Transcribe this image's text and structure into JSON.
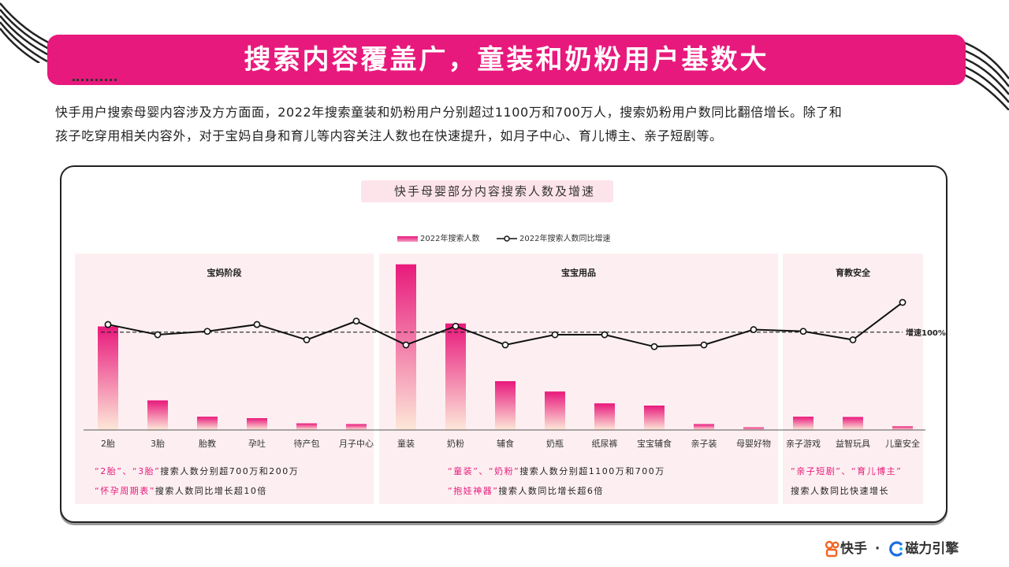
{
  "header": {
    "title": "搜索内容覆盖广，童装和奶粉用户基数大"
  },
  "intro": {
    "line1": "快手用户搜索母婴内容涉及方方面面，2022年搜索童装和奶粉用户分别超过1100万和700万人，搜索奶粉用户数同比翻倍增长。除了和",
    "line2": "孩子吃穿用相关内容外，对于宝妈自身和育儿等内容关注人数也在快速提升，如月子中心、育儿博主、亲子短剧等。"
  },
  "chart_data": {
    "type": "bar",
    "title": "快手母婴部分内容搜索人数及增速",
    "legend": [
      "2022年搜索人数",
      "2022年搜索人数同比增速"
    ],
    "legend_position": "top-center",
    "categories": [
      "2胎",
      "3胎",
      "胎教",
      "孕吐",
      "待产包",
      "月子中心",
      "童装",
      "奶粉",
      "辅食",
      "奶瓶",
      "纸尿裤",
      "宝宝辅食",
      "亲子装",
      "母婴好物",
      "亲子游戏",
      "益智玩具",
      "儿童安全"
    ],
    "series": [
      {
        "name": "2022年搜索人数",
        "kind": "bar",
        "values": [
          700,
          200,
          90,
          80,
          45,
          40,
          1120,
          720,
          330,
          260,
          180,
          165,
          40,
          18,
          90,
          88,
          25
        ]
      },
      {
        "name": "2022年搜索人数同比增速",
        "kind": "line",
        "values": [
          0.62,
          0.56,
          0.58,
          0.62,
          0.53,
          0.64,
          0.5,
          0.61,
          0.5,
          0.56,
          0.56,
          0.49,
          0.5,
          0.59,
          0.58,
          0.53,
          0.75
        ]
      }
    ],
    "reference_line": {
      "label": "增速100%",
      "value": 0.575
    },
    "groups": [
      {
        "title": "宝妈阶段",
        "start": 0,
        "end": 5
      },
      {
        "title": "宝宝用品",
        "start": 6,
        "end": 13
      },
      {
        "title": "育教安全",
        "start": 14,
        "end": 16
      }
    ],
    "ylim_bar": [
      0,
      1150
    ],
    "ylim_line": [
      0,
      1
    ],
    "grid": false
  },
  "notes": {
    "mom": [
      [
        {
          "t": "“2胎”、“3胎”",
          "hl": true
        },
        {
          "t": "搜索人数分别超700万和200万",
          "hl": false
        }
      ],
      [
        {
          "t": "“怀孕周期表”",
          "hl": true
        },
        {
          "t": "搜索人数同比增长超10倍",
          "hl": false
        }
      ]
    ],
    "baby": [
      [
        {
          "t": "“童装”、“奶粉”",
          "hl": true
        },
        {
          "t": "搜索人数分别超1100万和700万",
          "hl": false
        }
      ],
      [
        {
          "t": "“抱娃神器”",
          "hl": true
        },
        {
          "t": "搜索人数同比增长超6倍",
          "hl": false
        }
      ]
    ],
    "edu": [
      [
        {
          "t": "“亲子短剧”、“育儿博主”",
          "hl": true
        }
      ],
      [
        {
          "t": "搜索人数同比快速增长",
          "hl": false
        }
      ]
    ]
  },
  "footer": {
    "brand1": "快手",
    "sep": "·",
    "brand2": "磁力引擎"
  },
  "colors": {
    "accent": "#e8197c",
    "panel": "#fdeff1",
    "bar_top": "#e8197c",
    "bar_bottom": "#fde8d9"
  }
}
